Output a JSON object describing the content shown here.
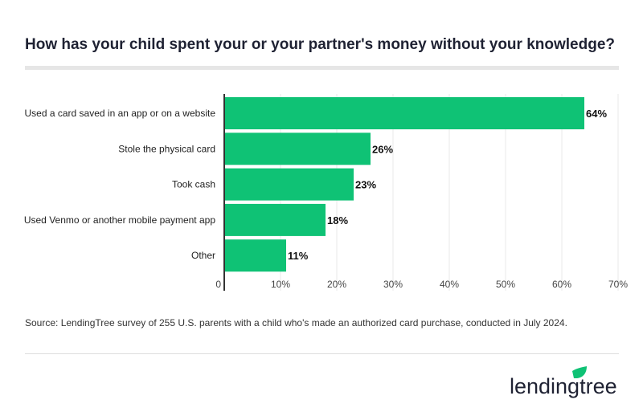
{
  "title": "How has your child spent your or your partner's money without your knowledge?",
  "source": "Source: LendingTree survey of 255 U.S. parents with a child who's made an authorized card purchase, conducted in July 2024.",
  "logo_text": "lendingtree",
  "colors": {
    "bar": "#0fc275",
    "text": "#1f2233",
    "grid": "#e8e8e8",
    "logo_leaf": "#0fc275"
  },
  "chart_data": {
    "type": "bar",
    "orientation": "horizontal",
    "categories": [
      "Used a card saved in an app or on a website",
      "Stole the physical card",
      "Took cash",
      "Used Venmo or another mobile payment app",
      "Other"
    ],
    "values": [
      64,
      26,
      23,
      18,
      11
    ],
    "data_labels": [
      "64%",
      "26%",
      "23%",
      "18%",
      "11%"
    ],
    "xlim": [
      0,
      70
    ],
    "x_ticks": [
      "0",
      "10%",
      "20%",
      "30%",
      "40%",
      "50%",
      "60%",
      "70%"
    ],
    "grid": true
  }
}
